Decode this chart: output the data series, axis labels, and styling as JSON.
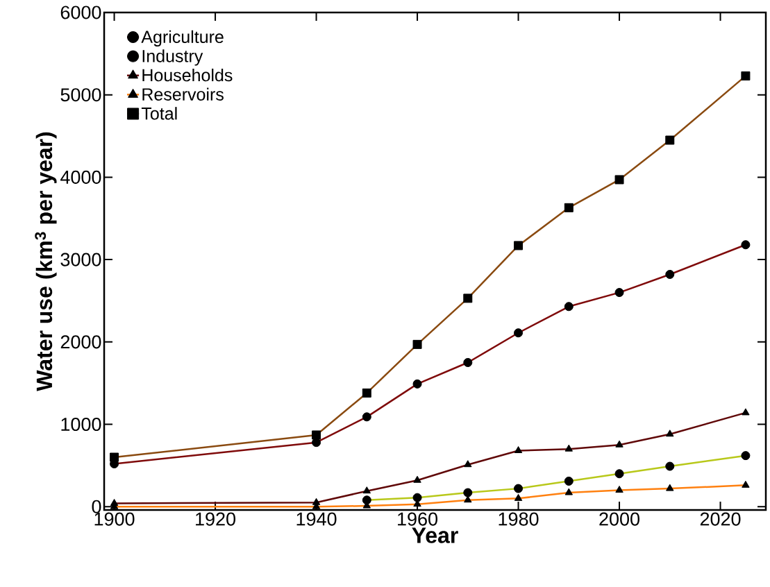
{
  "chart_data": {
    "type": "line",
    "xlabel": "Year",
    "ylabel": "Water use (km$^{3}$ per year)",
    "x": [
      1900,
      1940,
      1950,
      1960,
      1970,
      1980,
      1990,
      2000,
      2010,
      2025
    ],
    "xlim": [
      1898,
      2029
    ],
    "xticks": [
      1900,
      1920,
      1940,
      1960,
      1980,
      2000,
      2020
    ],
    "ylim": [
      -40,
      6000
    ],
    "yticks": [
      0,
      1000,
      2000,
      3000,
      4000,
      5000,
      6000
    ],
    "grid": false,
    "legend": "top left",
    "line_style": "solid",
    "series": [
      {
        "name": "Agriculture",
        "color": "#7f0a0a",
        "marker": "circle",
        "values": [
          520,
          780,
          1090,
          1490,
          1750,
          2110,
          2430,
          2600,
          2820,
          3180
        ]
      },
      {
        "name": "Industry",
        "color": "#b8c81a",
        "marker": "circle",
        "values": [
          null,
          null,
          80,
          110,
          170,
          220,
          310,
          400,
          490,
          620
        ]
      },
      {
        "name": "Households",
        "color": "#600808",
        "marker": "triangle",
        "values": [
          40,
          50,
          190,
          320,
          510,
          680,
          700,
          750,
          880,
          1140
        ]
      },
      {
        "name": "Reservoirs",
        "color": "#ff8010",
        "marker": "triangle",
        "values": [
          0,
          0,
          10,
          30,
          80,
          100,
          170,
          200,
          220,
          260
        ]
      },
      {
        "name": "Total",
        "color": "#8a4a10",
        "marker": "square",
        "values": [
          600,
          870,
          1380,
          1970,
          2530,
          3170,
          3630,
          3970,
          4450,
          5230
        ]
      }
    ]
  }
}
